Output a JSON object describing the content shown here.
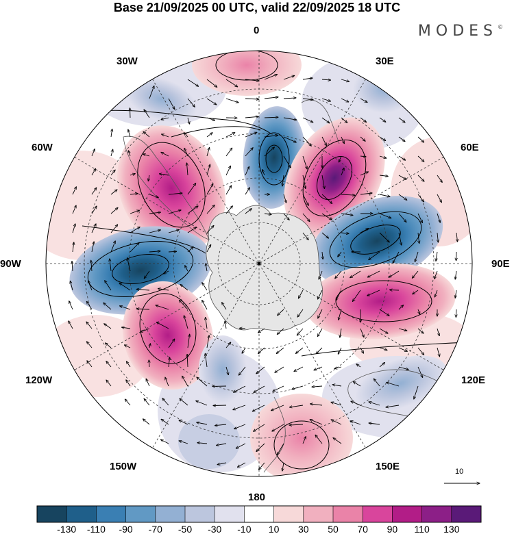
{
  "title": "Base 21/09/2025 00 UTC, valid 22/09/2025 18 UTC",
  "logo": {
    "text": "MODES",
    "mark": "©"
  },
  "longitude_labels": {
    "lon_0": "0",
    "lon_30e": "30E",
    "lon_60e": "60E",
    "lon_90e": "90E",
    "lon_120e": "120E",
    "lon_150e": "150E",
    "lon_180": "180",
    "lon_150w": "150W",
    "lon_120w": "120W",
    "lon_90w": "90W",
    "lon_60w": "60W",
    "lon_30w": "30W"
  },
  "reference_vector": {
    "label": "10",
    "icon": "arrow-right-icon"
  },
  "colorbar": {
    "labels": [
      "-130",
      "-110",
      "-90",
      "-70",
      "-50",
      "-30",
      "-10",
      "10",
      "30",
      "50",
      "70",
      "90",
      "110",
      "130"
    ],
    "colors": [
      "#17445f",
      "#1f5f8a",
      "#3a7fb3",
      "#6199c4",
      "#93b0d3",
      "#bcc6de",
      "#e1e1ee",
      "#ffffff",
      "#f7d9d9",
      "#f1b0bf",
      "#ea83a8",
      "#d9459c",
      "#b21d87",
      "#8c1f87",
      "#5a1a78"
    ]
  },
  "colors": {
    "land": "#e6e6e6",
    "coast": "#555555",
    "grid": "#333333",
    "vector": "#000000"
  }
}
